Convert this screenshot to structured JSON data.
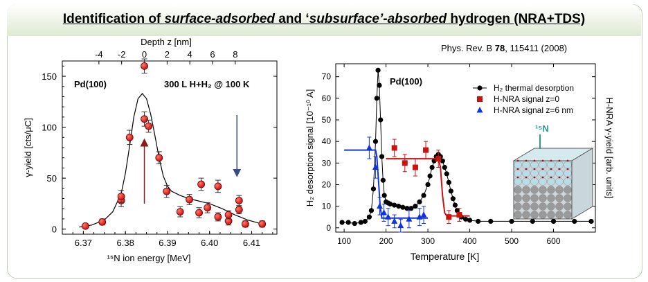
{
  "title": {
    "prefix": "Identification of ",
    "em1": "surface-adsorbed",
    "mid": " and ‘",
    "em2": "subsurface’-absorbed",
    "suffix": " hydrogen (NRA+TDS)"
  },
  "reference": {
    "journal": "Phys. Rev. B ",
    "volume": "78",
    "pages": ", 115411 (2008)"
  },
  "colors": {
    "red": "#cc1111",
    "blue": "#1133dd",
    "black": "#000000",
    "arrow_red": "#8b1a1a",
    "arrow_blue": "#3a4a8c",
    "crystal": "#b8dce8"
  },
  "chart_data": [
    {
      "type": "scatter",
      "sample_label": "Pd(100)",
      "exposure_label": "300 L H+H₂ @ 100 K",
      "xlabel_top": "Depth z [nm]",
      "xlabel_bottom": "¹⁵N ion energy [MeV]",
      "ylabel": "γ-yield [cts/μC]",
      "xlim": [
        6.365,
        6.416
      ],
      "ylim": [
        -5,
        165
      ],
      "x_ticks": [
        6.37,
        6.38,
        6.39,
        6.4,
        6.41
      ],
      "x_tick_labels": [
        "6.37",
        "6.38",
        "6.39",
        "6.40",
        "6.41"
      ],
      "y_ticks": [
        0,
        50,
        100,
        150
      ],
      "y_tick_labels": [
        "0",
        "50",
        "100",
        "150"
      ],
      "top_ticks": [
        -4,
        -2,
        0,
        2,
        4,
        6,
        8
      ],
      "top_tick_labels": [
        "-4",
        "-2",
        "0",
        "2",
        "4",
        "6",
        "8"
      ],
      "top_axis_map": {
        "depth0_energy": 6.3845,
        "energy_per_nm": 0.0027
      },
      "points": [
        {
          "x": 6.3705,
          "y": 3,
          "err": 2
        },
        {
          "x": 6.3745,
          "y": 7,
          "err": 3
        },
        {
          "x": 6.379,
          "y": 28,
          "err": 6
        },
        {
          "x": 6.379,
          "y": 32,
          "err": 6
        },
        {
          "x": 6.381,
          "y": 90,
          "err": 7
        },
        {
          "x": 6.3845,
          "y": 160,
          "err": 7
        },
        {
          "x": 6.3845,
          "y": 108,
          "err": 7
        },
        {
          "x": 6.3855,
          "y": 101,
          "err": 6
        },
        {
          "x": 6.388,
          "y": 70,
          "err": 6
        },
        {
          "x": 6.3898,
          "y": 37,
          "err": 6
        },
        {
          "x": 6.393,
          "y": 17,
          "err": 5
        },
        {
          "x": 6.3952,
          "y": 29,
          "err": 5
        },
        {
          "x": 6.3975,
          "y": 16,
          "err": 5
        },
        {
          "x": 6.398,
          "y": 44,
          "err": 6
        },
        {
          "x": 6.3995,
          "y": 21,
          "err": 5
        },
        {
          "x": 6.402,
          "y": 42,
          "err": 6
        },
        {
          "x": 6.402,
          "y": 12,
          "err": 4
        },
        {
          "x": 6.4045,
          "y": 8,
          "err": 4
        },
        {
          "x": 6.4045,
          "y": 14,
          "err": 4
        },
        {
          "x": 6.407,
          "y": 28,
          "err": 5
        },
        {
          "x": 6.407,
          "y": 19,
          "err": 4
        },
        {
          "x": 6.4085,
          "y": 5,
          "err": 3
        },
        {
          "x": 6.4125,
          "y": 5,
          "err": 3
        }
      ],
      "fit_curve": {
        "x": [
          6.369,
          6.372,
          6.375,
          6.377,
          6.379,
          6.38,
          6.381,
          6.382,
          6.383,
          6.384,
          6.385,
          6.386,
          6.387,
          6.388,
          6.389,
          6.39,
          6.391,
          6.393,
          6.395,
          6.397,
          6.4,
          6.403,
          6.406,
          6.409,
          6.4125
        ],
        "y": [
          2,
          4,
          9,
          17,
          35,
          55,
          82,
          110,
          128,
          133,
          128,
          113,
          92,
          70,
          52,
          42,
          37,
          33,
          30,
          28,
          25,
          20,
          14,
          9,
          5
        ]
      },
      "arrows": [
        {
          "color_key": "arrow_red",
          "x": 6.3845,
          "y_tip": 85,
          "y_tail": 25
        },
        {
          "color_key": "arrow_blue",
          "x": 6.4065,
          "y_tip": 55,
          "y_tail": 112
        }
      ]
    },
    {
      "type": "line",
      "sample_label": "Pd(100)",
      "xlabel": "Temperature [K]",
      "ylabel": "H₂ desorption signal  [10⁻¹⁰ A]",
      "ylabel_right": "H-NRA γ-yield [arb. units]",
      "xlim": [
        80,
        700
      ],
      "ylim": [
        -2,
        76
      ],
      "x_ticks": [
        100,
        200,
        300,
        400,
        500,
        600
      ],
      "x_tick_labels": [
        "100",
        "200",
        "300",
        "400",
        "500",
        "600"
      ],
      "y_ticks": [
        0,
        10,
        20,
        30,
        40,
        50,
        60,
        70
      ],
      "y_tick_labels": [
        "0",
        "10",
        "20",
        "30",
        "40",
        "50",
        "60",
        "70"
      ],
      "legend_position": "top-right",
      "crystal_label": "¹⁵N",
      "series": [
        {
          "name": "H₂ thermal desorption",
          "color_key": "black",
          "marker": "circle",
          "x": [
            95,
            110,
            125,
            140,
            150,
            160,
            165,
            170,
            175,
            178,
            181,
            184,
            187,
            190,
            193,
            196,
            200,
            205,
            210,
            220,
            230,
            240,
            250,
            260,
            270,
            280,
            290,
            300,
            305,
            310,
            315,
            320,
            325,
            330,
            335,
            340,
            345,
            350,
            355,
            360,
            365,
            370,
            375,
            380,
            390,
            400,
            420,
            450,
            500,
            550,
            600,
            650,
            690
          ],
          "y": [
            2.5,
            2.5,
            2,
            2.5,
            3,
            5,
            8,
            18,
            40,
            60,
            73,
            66,
            50,
            33,
            22,
            15,
            12,
            11.5,
            11,
            10.5,
            10,
            9.5,
            9,
            9,
            10,
            12,
            15,
            20,
            24,
            28,
            31,
            33,
            34,
            33,
            31,
            28,
            25,
            21,
            17,
            13.5,
            10.5,
            8,
            6,
            5,
            4,
            3.5,
            3,
            3,
            3,
            3,
            3,
            3,
            3
          ]
        },
        {
          "name": "H-NRA signal z=0",
          "color_key": "red",
          "marker": "square",
          "points": [
            {
              "x": 220,
              "y": 37,
              "err": 4
            },
            {
              "x": 245,
              "y": 30,
              "err": 4
            },
            {
              "x": 270,
              "y": 28,
              "err": 4
            },
            {
              "x": 295,
              "y": 36,
              "err": 4
            },
            {
              "x": 325,
              "y": 32,
              "err": 4
            },
            {
              "x": 350,
              "y": 5,
              "err": 3
            },
            {
              "x": 375,
              "y": 6,
              "err": 3
            }
          ],
          "fit": {
            "x": [
              200,
              325,
              330,
              335,
              340,
              345,
              400
            ],
            "y": [
              32,
              32,
              28,
              15,
              7,
              5.5,
              5.5
            ]
          }
        },
        {
          "name": "H-NRA signal z=6 nm",
          "color_key": "blue",
          "marker": "triangle",
          "points": [
            {
              "x": 160,
              "y": 37,
              "err": 5
            },
            {
              "x": 175,
              "y": 28,
              "err": 5
            },
            {
              "x": 185,
              "y": 10,
              "err": 4
            },
            {
              "x": 195,
              "y": 7,
              "err": 4
            },
            {
              "x": 205,
              "y": 5,
              "err": 4
            },
            {
              "x": 220,
              "y": 3,
              "err": 3
            },
            {
              "x": 235,
              "y": 1,
              "err": 3
            },
            {
              "x": 255,
              "y": 4,
              "err": 4
            },
            {
              "x": 280,
              "y": 5,
              "err": 4
            },
            {
              "x": 290,
              "y": 6,
              "err": 4
            }
          ],
          "fit": {
            "x": [
              100,
              175,
              178,
              182,
              186,
              190,
              300
            ],
            "y": [
              36,
              36,
              33,
              22,
              10,
              4.5,
              4.5
            ]
          }
        }
      ]
    }
  ]
}
